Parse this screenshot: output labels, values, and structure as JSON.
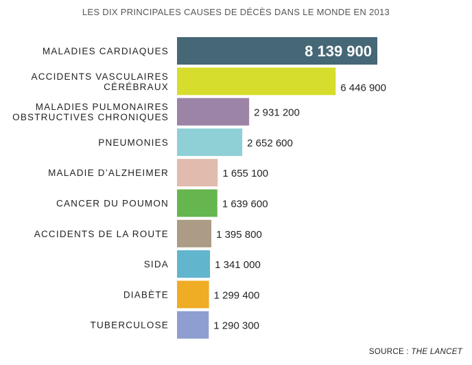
{
  "chart_data": {
    "type": "bar",
    "orientation": "horizontal",
    "title": "LES DIX PRINCIPALES CAUSES DE DÉCÈS DANS LE MONDE EN 2013",
    "categories": [
      [
        "MALADIES CARDIAQUES"
      ],
      [
        "ACCIDENTS VASCULAIRES",
        "CÉRÉBRAUX"
      ],
      [
        "MALADIES PULMONAIRES",
        "OBSTRUCTIVES CHRONIQUES"
      ],
      [
        "PNEUMONIES"
      ],
      [
        "MALADIE D’ALZHEIMER"
      ],
      [
        "CANCER DU POUMON"
      ],
      [
        "ACCIDENTS DE LA ROUTE"
      ],
      [
        "SIDA"
      ],
      [
        "DIABÈTE"
      ],
      [
        "TUBERCULOSE"
      ]
    ],
    "values": [
      8139900,
      6446900,
      2931200,
      2652600,
      1655100,
      1639600,
      1395800,
      1341000,
      1299400,
      1290300
    ],
    "value_labels": [
      "8 139 900",
      "6 446 900",
      "2 931 200",
      "2 652 600",
      "1 655 100",
      "1 639 600",
      "1 395 800",
      "1 341 000",
      "1 299 400",
      "1 290 300"
    ],
    "colors": [
      "#466776",
      "#d7dd2c",
      "#9c84a6",
      "#8fcfd6",
      "#e1bbae",
      "#65b64f",
      "#ac9b85",
      "#61b5cc",
      "#efac25",
      "#8f9ed0"
    ],
    "xlim": [
      0,
      8139900
    ],
    "grid": false,
    "legend": "none",
    "source_prefix": "SOURCE : ",
    "source_name": "THE LANCET"
  }
}
